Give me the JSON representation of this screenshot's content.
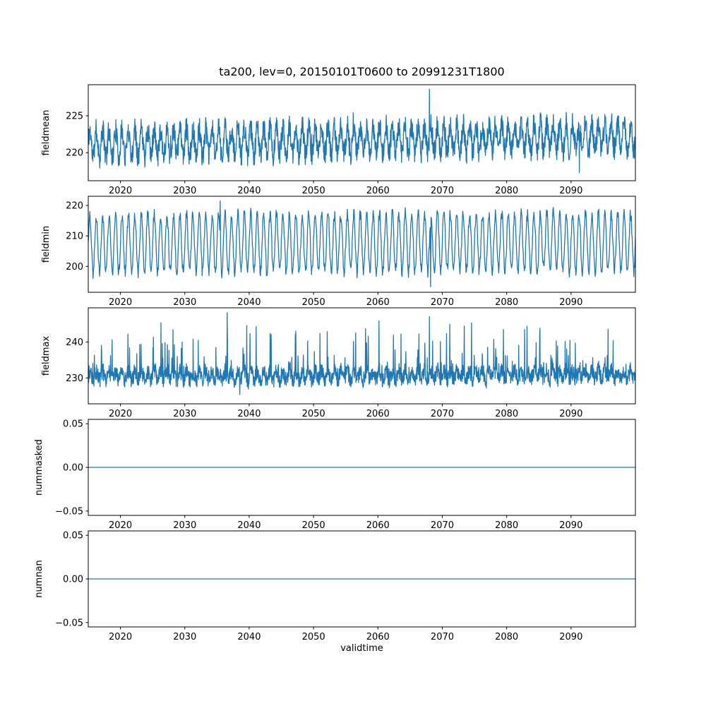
{
  "figure": {
    "title": "ta200, lev=0, 20150101T0600 to 20991231T1800",
    "xlabel": "validtime",
    "line_color": "#1f77b4",
    "background": "#ffffff",
    "text_color": "#000000"
  },
  "chart_data": [
    {
      "type": "line",
      "ylabel": "fieldmean",
      "x_range": [
        2015,
        2100
      ],
      "ylim": [
        216.2,
        229.2
      ],
      "yticks": [
        {
          "v": 220,
          "label": "220"
        },
        {
          "v": 225,
          "label": "225"
        }
      ],
      "xticks": [
        2020,
        2030,
        2040,
        2050,
        2060,
        2070,
        2080,
        2090
      ],
      "grid": false,
      "series": [
        {
          "name": "fieldmean",
          "visible_min": 217.3,
          "visible_max": 228.6,
          "approx_mean": 222,
          "gen": {
            "base": 221.2,
            "trend": 1.0,
            "seasonal_amp": 1.8,
            "noise_amp": 1.6,
            "spike_prob": 0.012,
            "spike_amp": 3.0,
            "points_per_year": 24,
            "seed": 11
          },
          "events": [
            {
              "x": 2068.0,
              "y": 228.6
            },
            {
              "x": 2091.3,
              "y": 217.3
            }
          ]
        }
      ]
    },
    {
      "type": "line",
      "ylabel": "fieldmin",
      "x_range": [
        2015,
        2100
      ],
      "ylim": [
        191.5,
        223.0
      ],
      "yticks": [
        {
          "v": 200,
          "label": "200"
        },
        {
          "v": 210,
          "label": "210"
        },
        {
          "v": 220,
          "label": "220"
        }
      ],
      "xticks": [
        2020,
        2030,
        2040,
        2050,
        2060,
        2070,
        2080,
        2090
      ],
      "grid": false,
      "series": [
        {
          "name": "fieldmin",
          "visible_min": 193.3,
          "visible_max": 221.5,
          "approx_mean": 207,
          "gen": {
            "base": 207.5,
            "trend": 0.5,
            "seasonal_amp": 9.5,
            "noise_amp": 2.0,
            "spike_prob": 0.01,
            "spike_amp": 2.5,
            "points_per_year": 16,
            "seed": 22
          },
          "events": [
            {
              "x": 2035.5,
              "y": 221.5
            },
            {
              "x": 2068.2,
              "y": 193.3
            }
          ]
        }
      ]
    },
    {
      "type": "line",
      "ylabel": "fieldmax",
      "x_range": [
        2015,
        2100
      ],
      "ylim": [
        222.8,
        249.5
      ],
      "yticks": [
        {
          "v": 230,
          "label": "230"
        },
        {
          "v": 240,
          "label": "240"
        }
      ],
      "xticks": [
        2020,
        2030,
        2040,
        2050,
        2060,
        2070,
        2080,
        2090
      ],
      "grid": false,
      "series": [
        {
          "name": "fieldmax",
          "visible_min": 224.5,
          "visible_max": 248.2,
          "approx_mean": 232,
          "gen": {
            "base": 230.5,
            "trend": 0.4,
            "seasonal_amp": 1.2,
            "noise_amp": 2.2,
            "spike_prob": 0.12,
            "spike_amp": 13.0,
            "dip_prob": 0.03,
            "dip_amp": 3.0,
            "points_per_year": 24,
            "seed": 33
          },
          "events": [
            {
              "x": 2036.6,
              "y": 248.2
            },
            {
              "x": 2068.0,
              "y": 247.0
            }
          ]
        }
      ]
    },
    {
      "type": "line",
      "ylabel": "nummasked",
      "x_range": [
        2015,
        2100
      ],
      "ylim": [
        -0.055,
        0.055
      ],
      "yticks": [
        {
          "v": -0.05,
          "label": "−0.05"
        },
        {
          "v": 0,
          "label": "0.00"
        },
        {
          "v": 0.05,
          "label": "0.05"
        }
      ],
      "xticks": [
        2020,
        2030,
        2040,
        2050,
        2060,
        2070,
        2080,
        2090
      ],
      "grid": false,
      "series": [
        {
          "name": "nummasked",
          "constant_value": 0,
          "gen": {
            "base": 0,
            "trend": 0,
            "seasonal_amp": 0,
            "noise_amp": 0,
            "points_per_year": 1,
            "seed": 44
          },
          "events": []
        }
      ]
    },
    {
      "type": "line",
      "ylabel": "numnan",
      "x_range": [
        2015,
        2100
      ],
      "ylim": [
        -0.055,
        0.055
      ],
      "yticks": [
        {
          "v": -0.05,
          "label": "−0.05"
        },
        {
          "v": 0,
          "label": "0.00"
        },
        {
          "v": 0.05,
          "label": "0.05"
        }
      ],
      "xticks": [
        2020,
        2030,
        2040,
        2050,
        2060,
        2070,
        2080,
        2090
      ],
      "grid": false,
      "series": [
        {
          "name": "numnan",
          "constant_value": 0,
          "gen": {
            "base": 0,
            "trend": 0,
            "seasonal_amp": 0,
            "noise_amp": 0,
            "points_per_year": 1,
            "seed": 55
          },
          "events": []
        }
      ]
    }
  ]
}
